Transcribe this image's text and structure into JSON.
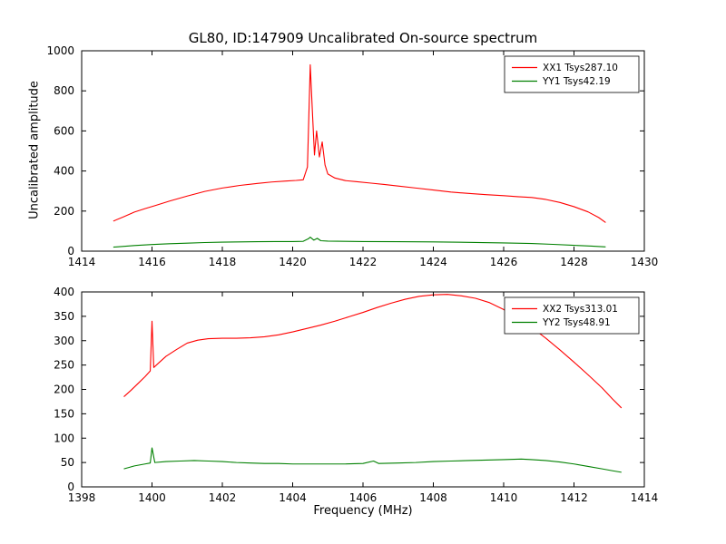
{
  "figure": {
    "background": "#ffffff",
    "frame_color": "#000000",
    "text_color": "#000000"
  },
  "chart_data": [
    {
      "type": "line",
      "title": "GL80, ID:147909 Uncalibrated On-source spectrum",
      "ylabel": "Uncalibrated amplitude",
      "xlabel": "",
      "xlim": [
        1414,
        1430
      ],
      "ylim": [
        0,
        1000
      ],
      "xticks": [
        1414,
        1416,
        1418,
        1420,
        1422,
        1424,
        1426,
        1428,
        1430
      ],
      "yticks": [
        0,
        200,
        400,
        600,
        800,
        1000
      ],
      "grid": false,
      "legend_position": "upper right",
      "series": [
        {
          "name": "XX1 Tsys287.10",
          "color": "#ff0000",
          "points": [
            [
              1414.9,
              150
            ],
            [
              1415.2,
              172
            ],
            [
              1415.5,
              195
            ],
            [
              1415.8,
              212
            ],
            [
              1416.1,
              228
            ],
            [
              1416.5,
              250
            ],
            [
              1417.0,
              275
            ],
            [
              1417.5,
              298
            ],
            [
              1418.0,
              315
            ],
            [
              1418.5,
              328
            ],
            [
              1419.0,
              338
            ],
            [
              1419.4,
              345
            ],
            [
              1419.8,
              350
            ],
            [
              1420.1,
              353
            ],
            [
              1420.3,
              356
            ],
            [
              1420.42,
              420
            ],
            [
              1420.5,
              930
            ],
            [
              1420.56,
              700
            ],
            [
              1420.62,
              480
            ],
            [
              1420.68,
              600
            ],
            [
              1420.76,
              470
            ],
            [
              1420.84,
              545
            ],
            [
              1420.92,
              430
            ],
            [
              1421.0,
              385
            ],
            [
              1421.2,
              365
            ],
            [
              1421.5,
              352
            ],
            [
              1421.8,
              347
            ],
            [
              1422.2,
              340
            ],
            [
              1422.6,
              333
            ],
            [
              1423.0,
              325
            ],
            [
              1423.5,
              315
            ],
            [
              1424.0,
              305
            ],
            [
              1424.5,
              295
            ],
            [
              1425.0,
              288
            ],
            [
              1425.5,
              282
            ],
            [
              1426.0,
              277
            ],
            [
              1426.4,
              272
            ],
            [
              1426.8,
              268
            ],
            [
              1427.2,
              258
            ],
            [
              1427.6,
              243
            ],
            [
              1428.0,
              222
            ],
            [
              1428.4,
              196
            ],
            [
              1428.7,
              168
            ],
            [
              1428.9,
              143
            ]
          ]
        },
        {
          "name": "YY1 Tsys42.19",
          "color": "#008000",
          "points": [
            [
              1414.9,
              20
            ],
            [
              1415.5,
              28
            ],
            [
              1416.0,
              33
            ],
            [
              1416.5,
              37
            ],
            [
              1417.0,
              40
            ],
            [
              1417.5,
              43
            ],
            [
              1418.0,
              45
            ],
            [
              1418.5,
              46
            ],
            [
              1419.0,
              47
            ],
            [
              1419.5,
              48
            ],
            [
              1420.0,
              48
            ],
            [
              1420.3,
              49
            ],
            [
              1420.45,
              62
            ],
            [
              1420.5,
              70
            ],
            [
              1420.6,
              55
            ],
            [
              1420.7,
              64
            ],
            [
              1420.8,
              52
            ],
            [
              1421.0,
              50
            ],
            [
              1421.5,
              49
            ],
            [
              1422.0,
              48
            ],
            [
              1423.0,
              47
            ],
            [
              1424.0,
              46
            ],
            [
              1425.0,
              44
            ],
            [
              1426.0,
              41
            ],
            [
              1426.8,
              38
            ],
            [
              1427.4,
              34
            ],
            [
              1428.0,
              29
            ],
            [
              1428.5,
              25
            ],
            [
              1428.9,
              21
            ]
          ]
        }
      ]
    },
    {
      "type": "line",
      "title": "",
      "ylabel": "",
      "xlabel": "Frequency (MHz)",
      "xlim": [
        1398,
        1414
      ],
      "ylim": [
        0,
        400
      ],
      "xticks": [
        1398,
        1400,
        1402,
        1404,
        1406,
        1408,
        1410,
        1412,
        1414
      ],
      "yticks": [
        0,
        50,
        100,
        150,
        200,
        250,
        300,
        350,
        400
      ],
      "grid": false,
      "legend_position": "upper right",
      "series": [
        {
          "name": "XX2 Tsys313.01",
          "color": "#ff0000",
          "points": [
            [
              1399.2,
              185
            ],
            [
              1399.4,
              198
            ],
            [
              1399.6,
              212
            ],
            [
              1399.8,
              226
            ],
            [
              1399.95,
              238
            ],
            [
              1400.0,
              340
            ],
            [
              1400.05,
              245
            ],
            [
              1400.2,
              255
            ],
            [
              1400.4,
              268
            ],
            [
              1400.7,
              282
            ],
            [
              1401.0,
              295
            ],
            [
              1401.3,
              301
            ],
            [
              1401.6,
              304
            ],
            [
              1402.0,
              305
            ],
            [
              1402.4,
              305
            ],
            [
              1402.8,
              306
            ],
            [
              1403.2,
              308
            ],
            [
              1403.6,
              312
            ],
            [
              1404.0,
              318
            ],
            [
              1404.4,
              325
            ],
            [
              1404.8,
              332
            ],
            [
              1405.2,
              340
            ],
            [
              1405.6,
              349
            ],
            [
              1406.0,
              358
            ],
            [
              1406.4,
              368
            ],
            [
              1406.8,
              377
            ],
            [
              1407.2,
              385
            ],
            [
              1407.6,
              391
            ],
            [
              1408.0,
              394
            ],
            [
              1408.4,
              395
            ],
            [
              1408.8,
              392
            ],
            [
              1409.2,
              387
            ],
            [
              1409.6,
              378
            ],
            [
              1410.0,
              364
            ],
            [
              1410.4,
              347
            ],
            [
              1410.8,
              327
            ],
            [
              1411.2,
              305
            ],
            [
              1411.6,
              281
            ],
            [
              1412.0,
              256
            ],
            [
              1412.4,
              230
            ],
            [
              1412.8,
              203
            ],
            [
              1413.1,
              180
            ],
            [
              1413.35,
              162
            ]
          ]
        },
        {
          "name": "YY2 Tsys48.91",
          "color": "#008000",
          "points": [
            [
              1399.2,
              37
            ],
            [
              1399.5,
              43
            ],
            [
              1399.8,
              47
            ],
            [
              1399.95,
              49
            ],
            [
              1400.0,
              80
            ],
            [
              1400.08,
              50
            ],
            [
              1400.4,
              52
            ],
            [
              1400.8,
              53
            ],
            [
              1401.2,
              54
            ],
            [
              1401.6,
              53
            ],
            [
              1402.0,
              52
            ],
            [
              1402.4,
              50
            ],
            [
              1402.8,
              49
            ],
            [
              1403.2,
              48
            ],
            [
              1403.6,
              48
            ],
            [
              1404.0,
              47
            ],
            [
              1404.5,
              47
            ],
            [
              1405.0,
              47
            ],
            [
              1405.5,
              47
            ],
            [
              1406.0,
              48
            ],
            [
              1406.3,
              53
            ],
            [
              1406.45,
              48
            ],
            [
              1407.0,
              49
            ],
            [
              1407.5,
              50
            ],
            [
              1408.0,
              52
            ],
            [
              1408.5,
              53
            ],
            [
              1409.0,
              54
            ],
            [
              1409.5,
              55
            ],
            [
              1410.0,
              56
            ],
            [
              1410.5,
              57
            ],
            [
              1410.8,
              56
            ],
            [
              1411.2,
              54
            ],
            [
              1411.6,
              51
            ],
            [
              1412.0,
              47
            ],
            [
              1412.4,
              42
            ],
            [
              1412.8,
              37
            ],
            [
              1413.1,
              33
            ],
            [
              1413.35,
              30
            ]
          ]
        }
      ]
    }
  ]
}
